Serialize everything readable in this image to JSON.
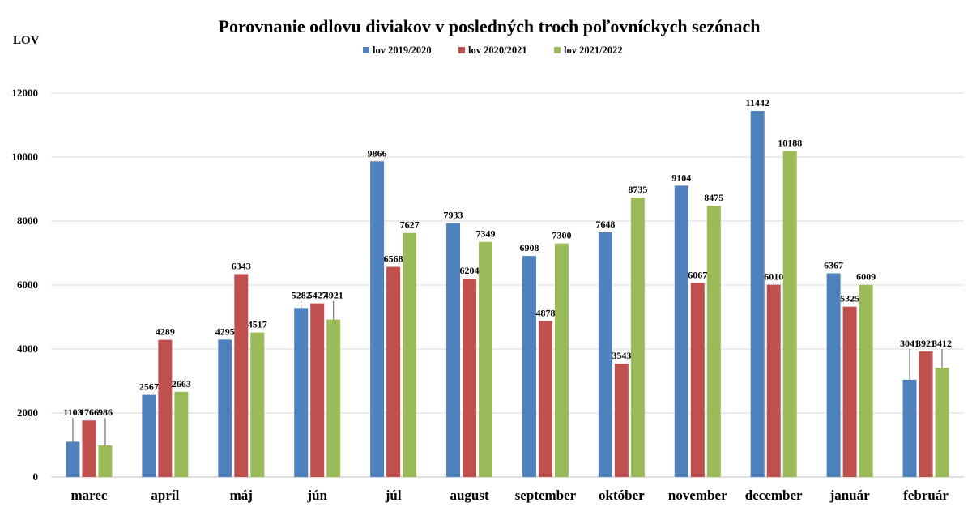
{
  "chart_data": {
    "type": "bar",
    "title": "Porovnanie odlovu diviakov v posledných troch poľovníckych sezónach",
    "ylabel": "LOV",
    "xlabel": "",
    "ylim": [
      0,
      12000
    ],
    "yticks": [
      0,
      2000,
      4000,
      6000,
      8000,
      10000,
      12000
    ],
    "grid": true,
    "legend_position": "top-center",
    "categories": [
      "marec",
      "apríl",
      "máj",
      "jún",
      "júl",
      "august",
      "september",
      "október",
      "november",
      "december",
      "január",
      "február"
    ],
    "series": [
      {
        "name": "lov 2019/2020",
        "color": "#4F81BD",
        "values": [
          1103,
          2567,
          4295,
          5282,
          9866,
          7933,
          6908,
          7648,
          9104,
          11442,
          6367,
          3041
        ]
      },
      {
        "name": "lov 2020/2021",
        "color": "#C0504D",
        "values": [
          1766,
          4289,
          6343,
          5427,
          6568,
          6204,
          4878,
          3543,
          6067,
          6010,
          5325,
          3921
        ]
      },
      {
        "name": "lov 2021/2022",
        "color": "#9BBB59",
        "values": [
          986,
          2663,
          4517,
          4921,
          7627,
          7349,
          7300,
          8735,
          8475,
          10188,
          6009,
          3412
        ]
      }
    ]
  }
}
